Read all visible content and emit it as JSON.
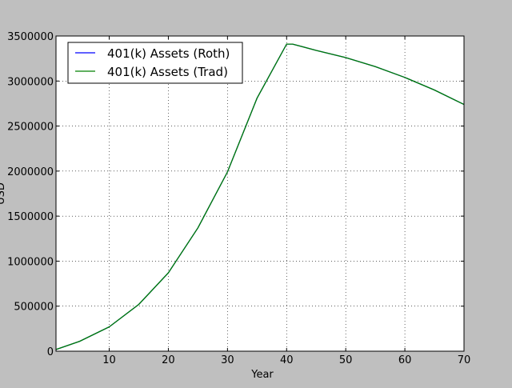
{
  "chart_data": {
    "type": "line",
    "title": "",
    "xlabel": "Year",
    "ylabel": "USD",
    "xlim": [
      1,
      70
    ],
    "ylim": [
      0,
      3500000
    ],
    "xticks": [
      10,
      20,
      30,
      40,
      50,
      60,
      70
    ],
    "yticks": [
      0,
      500000,
      1000000,
      1500000,
      2000000,
      2500000,
      3000000,
      3500000
    ],
    "grid": true,
    "legend_position": "top-left",
    "x": [
      1,
      5,
      10,
      15,
      20,
      25,
      30,
      35,
      40,
      41,
      45,
      50,
      55,
      60,
      65,
      70
    ],
    "series": [
      {
        "name": "401(k) Assets (Roth)",
        "color": "#0000ff",
        "values": [
          19000,
          110000,
          270000,
          520000,
          870000,
          1370000,
          1990000,
          2810000,
          3410000,
          3410000,
          3340000,
          3260000,
          3160000,
          3040000,
          2900000,
          2740000
        ]
      },
      {
        "name": "401(k) Assets (Trad)",
        "color": "#008000",
        "values": [
          19000,
          110000,
          270000,
          520000,
          870000,
          1370000,
          1990000,
          2810000,
          3410000,
          3410000,
          3340000,
          3260000,
          3160000,
          3040000,
          2900000,
          2740000
        ]
      }
    ]
  }
}
